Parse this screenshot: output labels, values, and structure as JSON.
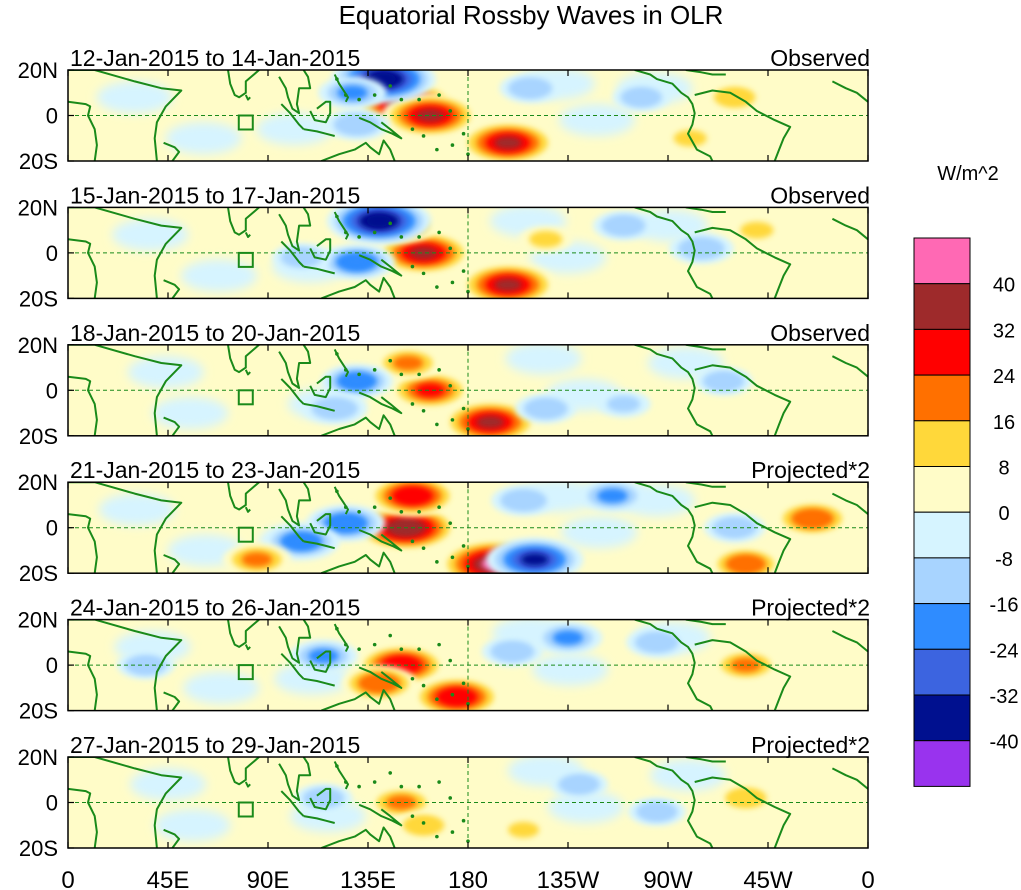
{
  "chart_data": {
    "type": "heatmap",
    "title": "Equatorial Rossby Waves in OLR",
    "variable": "OLR anomaly",
    "units_label": "W/m^2",
    "x_ticks": [
      "0",
      "45E",
      "90E",
      "135E",
      "180",
      "135W",
      "90W",
      "45W",
      "0"
    ],
    "x_tick_degrees": [
      0,
      45,
      90,
      135,
      180,
      225,
      270,
      315,
      360
    ],
    "y_ticks": [
      "20N",
      "0",
      "20S"
    ],
    "y_tick_degrees": [
      20,
      0,
      -20
    ],
    "xlim": [
      0,
      360
    ],
    "ylim": [
      -20,
      20
    ],
    "colorbar": {
      "levels": [
        -40,
        -32,
        -24,
        -16,
        -8,
        0,
        8,
        16,
        24,
        32,
        40
      ],
      "tick_labels": [
        "40",
        "32",
        "24",
        "16",
        "8",
        "0",
        "-8",
        "-16",
        "-24",
        "-32",
        "-40"
      ],
      "colors_top_to_bottom": [
        "#ff69b4",
        "#9e2a2b",
        "#ff0000",
        "#ff7000",
        "#ffd83a",
        "#fffcc8",
        "#d6f4ff",
        "#a8d4ff",
        "#2f8cff",
        "#3c64e0",
        "#00108f",
        "#9933ee"
      ]
    },
    "panels": [
      {
        "period": "12-Jan-2015 to 14-Jan-2015",
        "kind": "Observed",
        "features": [
          {
            "lon": 152,
            "lat": 5,
            "value": 36
          },
          {
            "lon": 163,
            "lat": 0,
            "value": 34
          },
          {
            "lon": 198,
            "lat": -12,
            "value": 34
          },
          {
            "lon": 142,
            "lat": 16,
            "value": -38
          },
          {
            "lon": 128,
            "lat": 10,
            "value": -18
          },
          {
            "lon": 130,
            "lat": -4,
            "value": -16
          },
          {
            "lon": 208,
            "lat": 12,
            "value": -14
          },
          {
            "lon": 258,
            "lat": 8,
            "value": -12
          },
          {
            "lon": 300,
            "lat": 8,
            "value": 12
          },
          {
            "lon": 280,
            "lat": -10,
            "value": 10
          }
        ]
      },
      {
        "period": "15-Jan-2015 to 17-Jan-2015",
        "kind": "Observed",
        "features": [
          {
            "lon": 160,
            "lat": 0,
            "value": 34
          },
          {
            "lon": 150,
            "lat": 12,
            "value": 20
          },
          {
            "lon": 198,
            "lat": -14,
            "value": 34
          },
          {
            "lon": 140,
            "lat": 14,
            "value": -38
          },
          {
            "lon": 130,
            "lat": -4,
            "value": -22
          },
          {
            "lon": 105,
            "lat": -2,
            "value": -12
          },
          {
            "lon": 250,
            "lat": 12,
            "value": -14
          },
          {
            "lon": 285,
            "lat": 2,
            "value": -16
          },
          {
            "lon": 215,
            "lat": 6,
            "value": 10
          },
          {
            "lon": 310,
            "lat": 10,
            "value": 10
          }
        ]
      },
      {
        "period": "18-Jan-2015 to 20-Jan-2015",
        "kind": "Observed",
        "features": [
          {
            "lon": 163,
            "lat": 0,
            "value": 26
          },
          {
            "lon": 153,
            "lat": 12,
            "value": 18
          },
          {
            "lon": 190,
            "lat": -14,
            "value": 34
          },
          {
            "lon": 130,
            "lat": 4,
            "value": -20
          },
          {
            "lon": 120,
            "lat": -8,
            "value": -16
          },
          {
            "lon": 215,
            "lat": -8,
            "value": -14
          },
          {
            "lon": 250,
            "lat": -6,
            "value": -10
          },
          {
            "lon": 295,
            "lat": 4,
            "value": -12
          }
        ]
      },
      {
        "period": "21-Jan-2015 to 23-Jan-2015",
        "kind": "Projected*2",
        "features": [
          {
            "lon": 152,
            "lat": 0,
            "value": 38
          },
          {
            "lon": 155,
            "lat": 14,
            "value": 30
          },
          {
            "lon": 192,
            "lat": -16,
            "value": 42
          },
          {
            "lon": 210,
            "lat": -14,
            "value": -34
          },
          {
            "lon": 125,
            "lat": 2,
            "value": -24
          },
          {
            "lon": 105,
            "lat": -6,
            "value": -22
          },
          {
            "lon": 85,
            "lat": -14,
            "value": 18
          },
          {
            "lon": 205,
            "lat": 12,
            "value": -16
          },
          {
            "lon": 245,
            "lat": 14,
            "value": -18
          },
          {
            "lon": 335,
            "lat": 4,
            "value": 22
          },
          {
            "lon": 305,
            "lat": -16,
            "value": 20
          },
          {
            "lon": 300,
            "lat": 0,
            "value": -14
          }
        ]
      },
      {
        "period": "24-Jan-2015 to 26-Jan-2015",
        "kind": "Projected*2",
        "features": [
          {
            "lon": 150,
            "lat": 0,
            "value": 30
          },
          {
            "lon": 140,
            "lat": -8,
            "value": 22
          },
          {
            "lon": 175,
            "lat": -14,
            "value": 30
          },
          {
            "lon": 115,
            "lat": 4,
            "value": -18
          },
          {
            "lon": 200,
            "lat": 6,
            "value": -14
          },
          {
            "lon": 225,
            "lat": 12,
            "value": -18
          },
          {
            "lon": 265,
            "lat": 10,
            "value": -14
          },
          {
            "lon": 305,
            "lat": 0,
            "value": 18
          },
          {
            "lon": 35,
            "lat": 0,
            "value": -12
          }
        ]
      },
      {
        "period": "27-Jan-2015 to 29-Jan-2015",
        "kind": "Projected*2",
        "features": [
          {
            "lon": 150,
            "lat": 0,
            "value": 18
          },
          {
            "lon": 160,
            "lat": -10,
            "value": 12
          },
          {
            "lon": 115,
            "lat": 2,
            "value": -12
          },
          {
            "lon": 230,
            "lat": 8,
            "value": -12
          },
          {
            "lon": 265,
            "lat": -4,
            "value": -12
          },
          {
            "lon": 305,
            "lat": 2,
            "value": 12
          },
          {
            "lon": 205,
            "lat": -12,
            "value": 8
          }
        ]
      }
    ]
  }
}
